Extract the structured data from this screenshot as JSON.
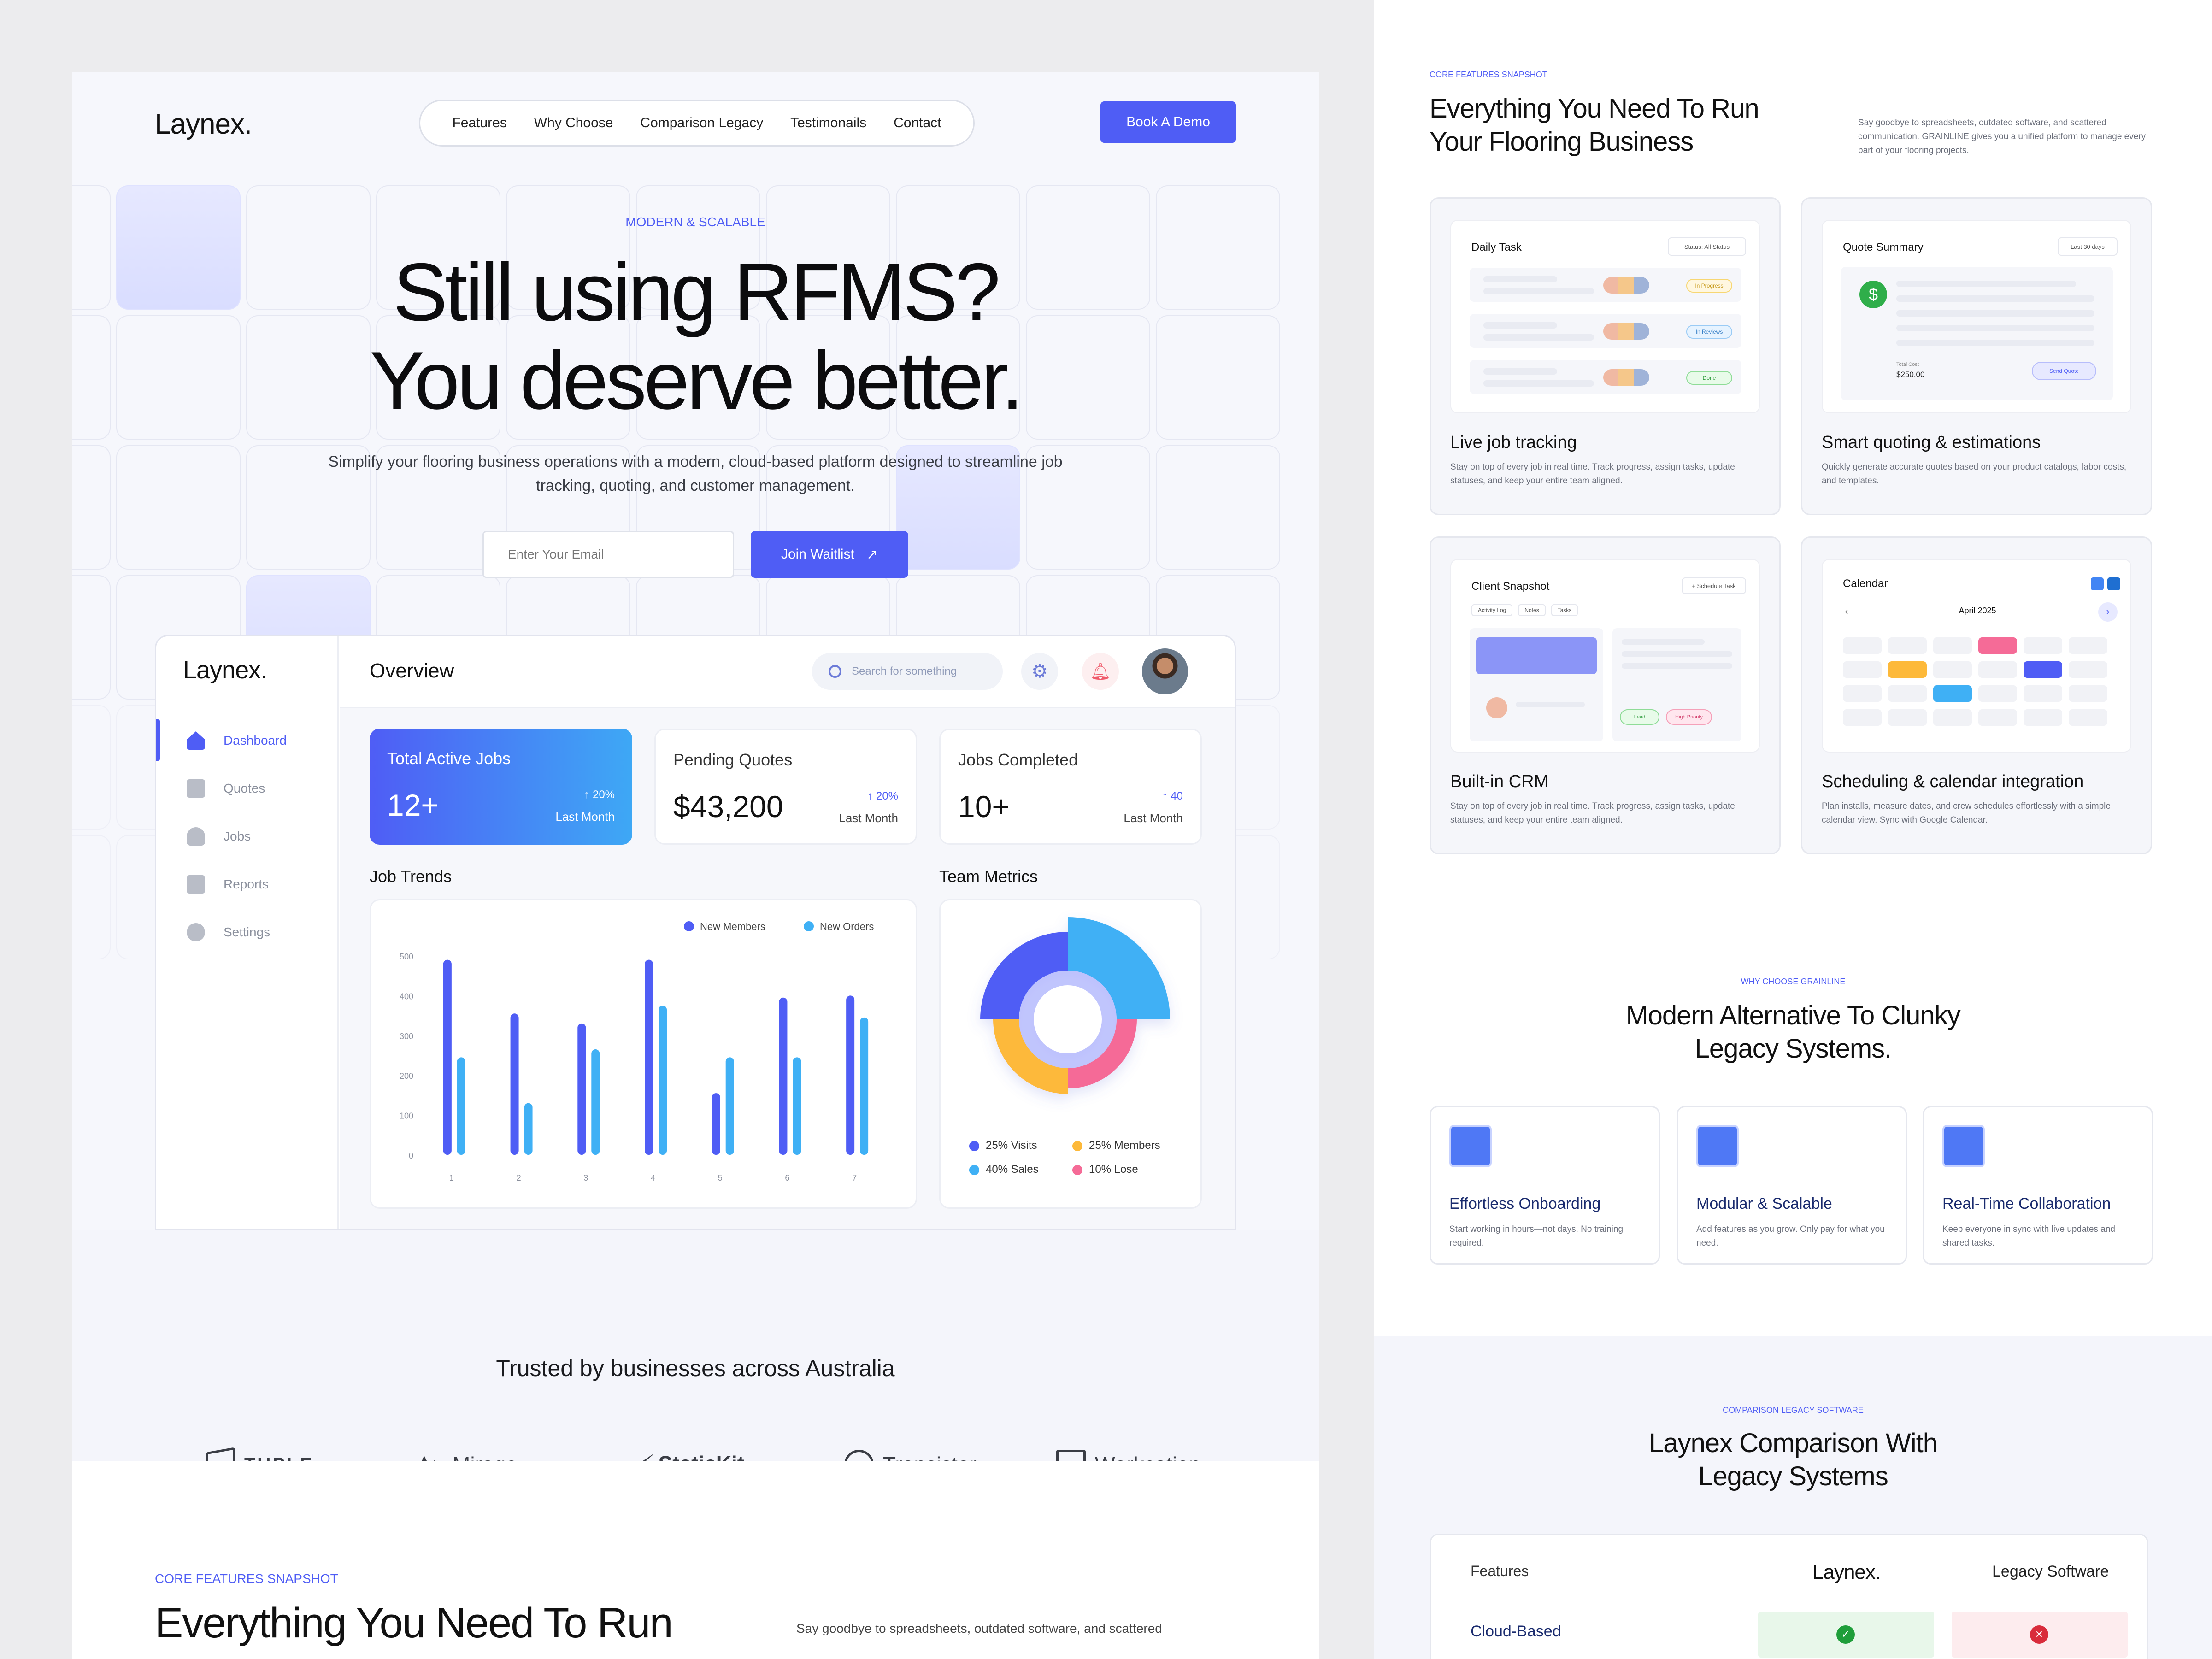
{
  "brand": "Laynex.",
  "nav": {
    "items": [
      "Features",
      "Why Choose",
      "Comparison Legacy",
      "Testimonails",
      "Contact"
    ],
    "cta": "Book A Demo"
  },
  "hero": {
    "eyebrow": "MODERN & SCALABLE",
    "title_line1": "Still using RFMS?",
    "title_line2": "You deserve better.",
    "subtitle_line1": "Simplify your flooring business operations with a modern, cloud-based platform designed to streamline job",
    "subtitle_line2": "tracking, quoting, and customer management.",
    "email_placeholder": "Enter Your Email",
    "join_label": "Join Waitlist"
  },
  "dashboard": {
    "brand": "Laynex.",
    "title": "Overview",
    "search_placeholder": "Search for something",
    "sidebar": [
      "Dashboard",
      "Quotes",
      "Jobs",
      "Reports",
      "Settings"
    ],
    "kpis": [
      {
        "title": "Total Active Jobs",
        "value": "12+",
        "delta": "↑ 20%",
        "label": "Last Month"
      },
      {
        "title": "Pending Quotes",
        "value": "$43,200",
        "delta": "↑ 20%",
        "label": "Last Month"
      },
      {
        "title": "Jobs Completed",
        "value": "10+",
        "delta": "↑ 40",
        "label": "Last Month"
      }
    ],
    "job_trends_title": "Job Trends",
    "team_metrics_title": "Team Metrics",
    "metrics_legend": [
      "25% Visits",
      "25% Members",
      "40% Sales",
      "10% Lose"
    ]
  },
  "chart_data": {
    "type": "bar",
    "categories": [
      "1",
      "2",
      "3",
      "4",
      "5",
      "6",
      "7"
    ],
    "series": [
      {
        "name": "New Members",
        "values": [
          490,
          355,
          330,
          490,
          155,
          395,
          400
        ]
      },
      {
        "name": "New Orders",
        "values": [
          245,
          130,
          265,
          375,
          245,
          245,
          345
        ]
      }
    ],
    "ylim": [
      0,
      500
    ],
    "yticks": [
      "500",
      "400",
      "300",
      "200",
      "100",
      "0"
    ],
    "colors": [
      "#4f5df5",
      "#3fb0f5"
    ],
    "legend": "top-right"
  },
  "trusted": {
    "title": "Trusted by businesses across Australia",
    "logos": [
      "TUPLE",
      "Mirage",
      "StaticKit",
      "Transistor",
      "Workcation"
    ]
  },
  "core_bottom": {
    "eyebrow": "CORE FEATURES SNAPSHOT",
    "title": "Everything You Need To Run",
    "desc": "Say goodbye to spreadsheets, outdated software, and scattered"
  },
  "core": {
    "eyebrow": "CORE FEATURES SNAPSHOT",
    "title_line1": "Everything You Need To Run",
    "title_line2": "Your Flooring Business",
    "desc": "Say goodbye to spreadsheets, outdated software, and scattered communication. GRAINLINE gives you a unified platform to manage every part of your flooring projects.",
    "cards": [
      {
        "title": "Live job tracking",
        "desc": "Stay on top of every job in real time. Track progress, assign tasks, update statuses, and keep your entire team aligned.",
        "mock_title": "Daily Task",
        "mock_filter": "Status: All Status",
        "tags": [
          "In Progress",
          "In Reviews",
          "Done"
        ]
      },
      {
        "title": "Smart quoting & estimations",
        "desc": "Quickly generate accurate quotes based on your product catalogs, labor costs, and templates.",
        "mock_title": "Quote Summary",
        "mock_filter": "Last 30 days",
        "total_label": "Total Cost",
        "total_value": "$250.00",
        "send_label": "Send Quote"
      },
      {
        "title": "Built-in CRM",
        "desc": "Stay on top of every job in real time. Track progress, assign tasks, update statuses, and keep your entire team aligned.",
        "mock_title": "Client Snapshot",
        "mock_action": "+ Schedule Task",
        "tabs": [
          "Activity Log",
          "Notes",
          "Tasks"
        ],
        "tags": [
          "Lead",
          "High Priority"
        ]
      },
      {
        "title": "Scheduling & calendar integration",
        "desc": "Plan installs, measure dates, and crew schedules effortlessly with a simple calendar view. Sync with Google Calendar.",
        "mock_title": "Calendar",
        "month": "April 2025"
      }
    ]
  },
  "why": {
    "eyebrow": "WHY CHOOSE GRAINLINE",
    "title_line1": "Modern Alternative To Clunky",
    "title_line2": "Legacy Systems.",
    "cards": [
      {
        "title": "Effortless Onboarding",
        "desc": "Start working in hours—not days. No training required."
      },
      {
        "title": "Modular & Scalable",
        "desc": "Add features as you grow. Only pay for what you need."
      },
      {
        "title": "Real-Time Collaboration",
        "desc": "Keep everyone in sync with live updates and shared tasks."
      }
    ]
  },
  "comparison": {
    "eyebrow": "COMPARISON LEGACY SOFTWARE",
    "title_line1": "Laynex Comparison With",
    "title_line2": "Legacy Systems",
    "col_features": "Features",
    "col_laynex": "Laynex.",
    "col_legacy": "Legacy Software",
    "row1": "Cloud-Based"
  }
}
